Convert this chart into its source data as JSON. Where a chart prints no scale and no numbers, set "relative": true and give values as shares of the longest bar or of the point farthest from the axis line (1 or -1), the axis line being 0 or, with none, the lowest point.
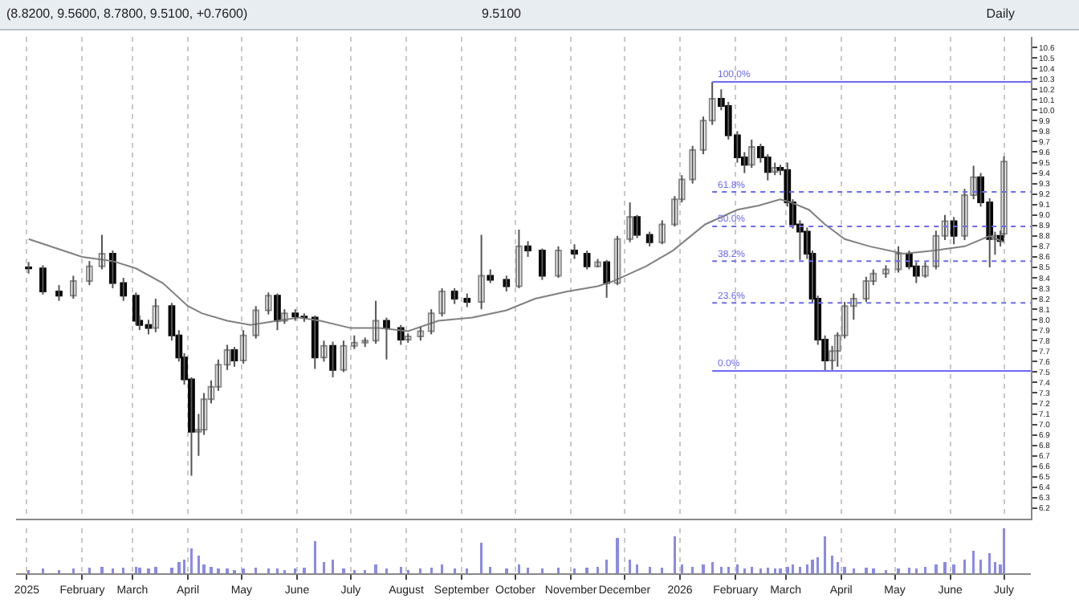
{
  "chart_data": [
    {
      "type": "candlestick",
      "annotations": [
        "(8.8200, 9.5600, 8.7800, 9.5100, +0.7600)",
        "9.5100",
        "Daily",
        {
          "text": "100.0%",
          "x": "2026-01-19",
          "y": 10.27
        },
        {
          "text": "61.8%",
          "x": "2026-01-19",
          "y": 9.22
        },
        {
          "text": "50.0%",
          "x": "2026-01-19",
          "y": 8.89
        },
        {
          "text": "38.2%",
          "x": "2026-01-19",
          "y": 8.56
        },
        {
          "text": "23.6%",
          "x": "2026-01-19",
          "y": 8.16
        },
        {
          "text": "0.0%",
          "x": "2026-01-19",
          "y": 7.51
        }
      ],
      "x": [
        "2025-01-02",
        "2025-01-10",
        "2025-01-19",
        "2025-01-27",
        "2025-02-05",
        "2025-02-12",
        "2025-02-18",
        "2025-02-24",
        "2025-03-03",
        "2025-03-05",
        "2025-03-10",
        "2025-03-14",
        "2025-03-23",
        "2025-03-27",
        "2025-03-30",
        "2025-04-03",
        "2025-04-07",
        "2025-04-10",
        "2025-04-14",
        "2025-04-18",
        "2025-04-23",
        "2025-04-27",
        "2025-05-02",
        "2025-05-09",
        "2025-05-16",
        "2025-05-21",
        "2025-05-25",
        "2025-05-31",
        "2025-06-05",
        "2025-06-11",
        "2025-06-16",
        "2025-06-21",
        "2025-06-27",
        "2025-07-03",
        "2025-07-09",
        "2025-07-15",
        "2025-07-21",
        "2025-07-29",
        "2025-08-02",
        "2025-08-09",
        "2025-08-15",
        "2025-08-21",
        "2025-08-28",
        "2025-09-04",
        "2025-09-12",
        "2025-09-17",
        "2025-09-26",
        "2025-10-03",
        "2025-10-08",
        "2025-10-16",
        "2025-10-25",
        "2025-11-03",
        "2025-11-10",
        "2025-11-16",
        "2025-11-21",
        "2025-11-27",
        "2025-12-04",
        "2025-12-08",
        "2025-12-15",
        "2025-12-22",
        "2025-12-29",
        "2026-01-02",
        "2026-01-08",
        "2026-01-14",
        "2026-01-19",
        "2026-01-24",
        "2026-01-28",
        "2026-02-02",
        "2026-02-06",
        "2026-02-10",
        "2026-02-15",
        "2026-02-19",
        "2026-02-23",
        "2026-02-26",
        "2026-03-02",
        "2026-03-05",
        "2026-03-09",
        "2026-03-13",
        "2026-03-16",
        "2026-03-19",
        "2026-03-23",
        "2026-03-27",
        "2026-03-30",
        "2026-04-03",
        "2026-04-08",
        "2026-04-15",
        "2026-04-19",
        "2026-04-26",
        "2026-05-03",
        "2026-05-09",
        "2026-05-13",
        "2026-05-18",
        "2026-05-24",
        "2026-05-29",
        "2026-06-03",
        "2026-06-09",
        "2026-06-14",
        "2026-06-18",
        "2026-06-23",
        "2026-06-26",
        "2026-06-29",
        "2026-07-01"
      ],
      "ohlc": [
        [
          8.5,
          8.55,
          8.44,
          8.49
        ],
        [
          8.49,
          8.52,
          8.24,
          8.27
        ],
        [
          8.27,
          8.33,
          8.18,
          8.23
        ],
        [
          8.23,
          8.42,
          8.2,
          8.37
        ],
        [
          8.37,
          8.56,
          8.33,
          8.51
        ],
        [
          8.51,
          8.81,
          8.48,
          8.63
        ],
        [
          8.63,
          8.66,
          8.3,
          8.35
        ],
        [
          8.35,
          8.4,
          8.18,
          8.23
        ],
        [
          8.23,
          8.26,
          7.95,
          7.99
        ],
        [
          7.99,
          8.04,
          7.9,
          7.95
        ],
        [
          7.95,
          8.0,
          7.86,
          7.92
        ],
        [
          7.92,
          8.2,
          7.88,
          8.13
        ],
        [
          8.13,
          8.16,
          7.8,
          7.85
        ],
        [
          7.85,
          7.9,
          7.6,
          7.64
        ],
        [
          7.64,
          7.68,
          7.38,
          7.43
        ],
        [
          7.43,
          7.45,
          6.51,
          6.93
        ],
        [
          6.93,
          7.1,
          6.7,
          6.95
        ],
        [
          6.95,
          7.3,
          6.9,
          7.24
        ],
        [
          7.24,
          7.42,
          7.2,
          7.36
        ],
        [
          7.36,
          7.62,
          7.32,
          7.57
        ],
        [
          7.57,
          7.76,
          7.52,
          7.71
        ],
        [
          7.71,
          7.74,
          7.55,
          7.61
        ],
        [
          7.61,
          7.9,
          7.58,
          7.85
        ],
        [
          7.85,
          8.13,
          7.82,
          8.09
        ],
        [
          8.09,
          8.26,
          8.05,
          8.23
        ],
        [
          8.23,
          8.25,
          7.9,
          7.99
        ],
        [
          7.99,
          8.1,
          7.96,
          8.06
        ],
        [
          8.06,
          8.1,
          7.99,
          8.03
        ],
        [
          8.03,
          8.06,
          7.98,
          8.02
        ],
        [
          8.02,
          8.04,
          7.53,
          7.64
        ],
        [
          7.64,
          7.8,
          7.6,
          7.75
        ],
        [
          7.75,
          7.79,
          7.45,
          7.52
        ],
        [
          7.52,
          7.8,
          7.5,
          7.75
        ],
        [
          7.75,
          7.85,
          7.72,
          7.78
        ],
        [
          7.78,
          7.83,
          7.74,
          7.8
        ],
        [
          7.8,
          8.18,
          7.77,
          7.99
        ],
        [
          7.99,
          8.02,
          7.62,
          7.92
        ],
        [
          7.92,
          7.95,
          7.76,
          7.81
        ],
        [
          7.81,
          7.87,
          7.78,
          7.84
        ],
        [
          7.84,
          7.93,
          7.8,
          7.89
        ],
        [
          7.89,
          8.1,
          7.86,
          8.06
        ],
        [
          8.06,
          8.3,
          8.03,
          8.27
        ],
        [
          8.27,
          8.3,
          8.15,
          8.2
        ],
        [
          8.2,
          8.25,
          8.12,
          8.17
        ],
        [
          8.17,
          8.81,
          8.1,
          8.42
        ],
        [
          8.42,
          8.48,
          8.35,
          8.38
        ],
        [
          8.38,
          8.42,
          8.27,
          8.32
        ],
        [
          8.32,
          8.86,
          8.3,
          8.7
        ],
        [
          8.7,
          8.75,
          8.6,
          8.66
        ],
        [
          8.66,
          8.68,
          8.38,
          8.42
        ],
        [
          8.42,
          8.7,
          8.4,
          8.66
        ],
        [
          8.66,
          8.72,
          8.58,
          8.63
        ],
        [
          8.63,
          8.66,
          8.48,
          8.51
        ],
        [
          8.51,
          8.58,
          8.5,
          8.55
        ],
        [
          8.55,
          8.57,
          8.21,
          8.35
        ],
        [
          8.35,
          8.8,
          8.33,
          8.77
        ],
        [
          8.77,
          9.12,
          8.74,
          8.98
        ],
        [
          8.98,
          9.0,
          8.78,
          8.81
        ],
        [
          8.81,
          8.84,
          8.7,
          8.74
        ],
        [
          8.74,
          8.95,
          8.72,
          8.91
        ],
        [
          8.91,
          9.18,
          8.89,
          9.15
        ],
        [
          9.15,
          9.38,
          9.12,
          9.34
        ],
        [
          9.34,
          9.66,
          9.3,
          9.62
        ],
        [
          9.62,
          9.94,
          9.58,
          9.9
        ],
        [
          9.9,
          10.27,
          9.86,
          10.11
        ],
        [
          10.11,
          10.2,
          10.0,
          10.04
        ],
        [
          10.04,
          10.08,
          9.72,
          9.76
        ],
        [
          9.76,
          9.8,
          9.5,
          9.55
        ],
        [
          9.55,
          9.6,
          9.4,
          9.48
        ],
        [
          9.48,
          9.72,
          9.45,
          9.65
        ],
        [
          9.65,
          9.68,
          9.5,
          9.55
        ],
        [
          9.55,
          9.58,
          9.33,
          9.41
        ],
        [
          9.41,
          9.5,
          9.38,
          9.45
        ],
        [
          9.45,
          9.48,
          9.38,
          9.43
        ],
        [
          9.43,
          9.5,
          9.08,
          9.12
        ],
        [
          9.12,
          9.15,
          8.87,
          8.91
        ],
        [
          8.91,
          8.95,
          8.57,
          8.84
        ],
        [
          8.84,
          8.88,
          8.58,
          8.63
        ],
        [
          8.63,
          8.66,
          8.16,
          8.2
        ],
        [
          8.2,
          8.23,
          7.76,
          7.81
        ],
        [
          7.81,
          7.85,
          7.51,
          7.61
        ],
        [
          7.61,
          7.75,
          7.52,
          7.7
        ],
        [
          7.7,
          7.88,
          7.55,
          7.85
        ],
        [
          7.85,
          8.17,
          7.82,
          8.13
        ],
        [
          8.13,
          8.25,
          8.0,
          8.2
        ],
        [
          8.2,
          8.41,
          8.17,
          8.37
        ],
        [
          8.37,
          8.48,
          8.33,
          8.44
        ],
        [
          8.44,
          8.52,
          8.4,
          8.48
        ],
        [
          8.48,
          8.7,
          8.45,
          8.63
        ],
        [
          8.63,
          8.66,
          8.48,
          8.51
        ],
        [
          8.51,
          8.55,
          8.35,
          8.42
        ],
        [
          8.42,
          8.55,
          8.4,
          8.51
        ],
        [
          8.51,
          8.85,
          8.48,
          8.8
        ],
        [
          8.8,
          9.0,
          8.76,
          8.94
        ],
        [
          8.94,
          8.98,
          8.72,
          8.8
        ],
        [
          8.8,
          9.25,
          8.76,
          9.19
        ],
        [
          9.19,
          9.47,
          9.15,
          9.36
        ],
        [
          9.36,
          9.4,
          9.08,
          9.12
        ],
        [
          9.12,
          9.16,
          8.5,
          8.77
        ],
        [
          8.77,
          8.84,
          8.62,
          8.8
        ],
        [
          8.8,
          8.85,
          8.7,
          8.75
        ],
        [
          8.82,
          9.56,
          8.78,
          9.51
        ]
      ],
      "series": [
        {
          "type": "line",
          "color": "#808080",
          "x": [
            "2025-01-02",
            "2025-02-01",
            "2025-02-18",
            "2025-03-03",
            "2025-03-18",
            "2025-04-01",
            "2025-04-09",
            "2025-04-23",
            "2025-05-06",
            "2025-05-21",
            "2025-06-02",
            "2025-06-14",
            "2025-07-01",
            "2025-07-17",
            "2025-08-02",
            "2025-08-19",
            "2025-09-07",
            "2025-09-26",
            "2025-10-12",
            "2025-10-30",
            "2025-11-16",
            "2025-11-25",
            "2025-12-13",
            "2025-12-28",
            "2026-01-15",
            "2026-02-02",
            "2026-02-14",
            "2026-02-26",
            "2026-03-04",
            "2026-03-14",
            "2026-03-23",
            "2026-04-03",
            "2026-04-17",
            "2026-05-06",
            "2026-05-23",
            "2026-06-09",
            "2026-06-23",
            "2026-07-01"
          ],
          "values": [
            8.77,
            8.6,
            8.56,
            8.49,
            8.35,
            8.13,
            8.06,
            7.99,
            7.95,
            7.99,
            8.02,
            7.99,
            7.92,
            7.92,
            7.89,
            7.99,
            8.02,
            8.09,
            8.2,
            8.27,
            8.32,
            8.37,
            8.51,
            8.66,
            8.91,
            9.05,
            9.09,
            9.15,
            9.12,
            9.05,
            8.91,
            8.77,
            8.7,
            8.63,
            8.66,
            8.7,
            8.8,
            8.74
          ]
        }
      ],
      "xlim": [
        "2024-12-26",
        "2026-07-16"
      ],
      "xticks": [
        {
          "value": "2025-01-01",
          "label": null
        },
        {
          "value": "2025-02-01",
          "label": null
        },
        {
          "value": "2025-03-01",
          "label": null
        },
        {
          "value": "2025-04-01",
          "label": null
        },
        {
          "value": "2025-05-01",
          "label": null
        },
        {
          "value": "2025-06-01",
          "label": null
        },
        {
          "value": "2025-07-01",
          "label": null
        },
        {
          "value": "2025-08-01",
          "label": null
        },
        {
          "value": "2025-09-01",
          "label": null
        },
        {
          "value": "2025-10-01",
          "label": null
        },
        {
          "value": "2025-11-01",
          "label": null
        },
        {
          "value": "2025-12-01",
          "label": null
        },
        {
          "value": "2026-01-01",
          "label": null
        },
        {
          "value": "2026-02-01",
          "label": null
        },
        {
          "value": "2026-03-01",
          "label": null
        },
        {
          "value": "2026-04-01",
          "label": null
        },
        {
          "value": "2026-05-01",
          "label": null
        },
        {
          "value": "2026-06-01",
          "label": null
        },
        {
          "value": "2026-07-01",
          "label": null
        }
      ],
      "ylim": [
        6.1,
        10.7
      ],
      "yticks": [
        6.2,
        6.3,
        6.4,
        6.5,
        6.6,
        6.7,
        6.8,
        6.9,
        {
          "value": 7,
          "label": "7.0"
        },
        7.1,
        7.2,
        7.3,
        7.4,
        7.5,
        7.6,
        7.7,
        7.8,
        7.9,
        {
          "value": 8,
          "label": "8.0"
        },
        8.1,
        8.2,
        8.3,
        8.4,
        8.5,
        8.6,
        8.7,
        8.8,
        8.9,
        {
          "value": 9,
          "label": "9.0"
        },
        9.1,
        9.2,
        9.3,
        9.4,
        9.5,
        9.6,
        9.7,
        9.8,
        9.9,
        {
          "value": 10,
          "label": "10.0"
        },
        10.1,
        10.2,
        10.3,
        10.4,
        10.5,
        10.6
      ],
      "grid": "x",
      "tick_labels": "y",
      "ref_lines": [
        {
          "axis": "y",
          "value": 10.27,
          "color": "#6b6bf0",
          "line_style": "solid"
        },
        {
          "axis": "y",
          "value": 9.22,
          "color": "#6b6bf0",
          "line_style": "dotted"
        },
        {
          "axis": "y",
          "value": 8.89,
          "color": "#6b6bf0",
          "line_style": "dotted"
        },
        {
          "axis": "y",
          "value": 8.56,
          "color": "#6b6bf0",
          "line_style": "dotted"
        },
        {
          "axis": "y",
          "value": 8.16,
          "color": "#6b6bf0",
          "line_style": "dotted"
        },
        {
          "axis": "y",
          "value": 7.51,
          "color": "#6b6bf0",
          "line_style": "solid"
        }
      ]
    },
    {
      "type": "bar",
      "relative": true,
      "color": "#8a8ae6",
      "x": [
        "2025-01-02",
        "2025-01-10",
        "2025-01-19",
        "2025-01-27",
        "2025-02-05",
        "2025-02-12",
        "2025-02-18",
        "2025-02-24",
        "2025-03-03",
        "2025-03-05",
        "2025-03-10",
        "2025-03-14",
        "2025-03-23",
        "2025-03-27",
        "2025-03-30",
        "2025-04-03",
        "2025-04-07",
        "2025-04-10",
        "2025-04-14",
        "2025-04-18",
        "2025-04-23",
        "2025-04-27",
        "2025-05-02",
        "2025-05-09",
        "2025-05-16",
        "2025-05-21",
        "2025-05-25",
        "2025-05-31",
        "2025-06-05",
        "2025-06-11",
        "2025-06-16",
        "2025-06-21",
        "2025-06-27",
        "2025-07-03",
        "2025-07-09",
        "2025-07-15",
        "2025-07-21",
        "2025-07-29",
        "2025-08-02",
        "2025-08-09",
        "2025-08-15",
        "2025-08-21",
        "2025-08-28",
        "2025-09-04",
        "2025-09-12",
        "2025-09-17",
        "2025-09-26",
        "2025-10-03",
        "2025-10-08",
        "2025-10-16",
        "2025-10-25",
        "2025-11-03",
        "2025-11-10",
        "2025-11-16",
        "2025-11-21",
        "2025-11-27",
        "2025-12-04",
        "2025-12-08",
        "2025-12-15",
        "2025-12-22",
        "2025-12-29",
        "2026-01-02",
        "2026-01-08",
        "2026-01-14",
        "2026-01-19",
        "2026-01-24",
        "2026-01-28",
        "2026-02-02",
        "2026-02-06",
        "2026-02-10",
        "2026-02-15",
        "2026-02-19",
        "2026-02-23",
        "2026-02-26",
        "2026-03-02",
        "2026-03-05",
        "2026-03-09",
        "2026-03-13",
        "2026-03-16",
        "2026-03-19",
        "2026-03-23",
        "2026-03-27",
        "2026-03-30",
        "2026-04-03",
        "2026-04-08",
        "2026-04-15",
        "2026-04-19",
        "2026-04-26",
        "2026-05-03",
        "2026-05-09",
        "2026-05-13",
        "2026-05-18",
        "2026-05-24",
        "2026-05-29",
        "2026-06-03",
        "2026-06-09",
        "2026-06-14",
        "2026-06-18",
        "2026-06-23",
        "2026-06-26",
        "2026-06-29",
        "2026-07-01"
      ],
      "values": [
        0.08,
        0.1,
        0.08,
        0.1,
        0.12,
        0.15,
        0.1,
        0.12,
        0.15,
        0.12,
        0.1,
        0.15,
        0.12,
        0.25,
        0.3,
        0.55,
        0.4,
        0.2,
        0.15,
        0.1,
        0.1,
        0.08,
        0.1,
        0.12,
        0.1,
        0.1,
        0.08,
        0.1,
        0.12,
        0.72,
        0.25,
        0.3,
        0.1,
        0.08,
        0.08,
        0.2,
        0.1,
        0.15,
        0.08,
        0.1,
        0.12,
        0.2,
        0.1,
        0.1,
        0.68,
        0.15,
        0.1,
        0.2,
        0.12,
        0.1,
        0.12,
        0.1,
        0.12,
        0.15,
        0.3,
        0.78,
        0.3,
        0.2,
        0.15,
        0.12,
        0.83,
        0.2,
        0.15,
        0.2,
        0.25,
        0.15,
        0.15,
        0.2,
        0.1,
        0.15,
        0.1,
        0.12,
        0.1,
        0.1,
        0.15,
        0.2,
        0.15,
        0.2,
        0.3,
        0.35,
        0.83,
        0.4,
        0.25,
        0.15,
        0.1,
        0.12,
        0.1,
        0.08,
        0.1,
        0.12,
        0.1,
        0.15,
        0.2,
        0.25,
        0.2,
        0.3,
        0.5,
        0.3,
        0.45,
        0.25,
        0.2,
        1
      ],
      "xlim": [
        "2024-12-26",
        "2026-07-16"
      ],
      "xticks": [
        {
          "value": "2025-01-01",
          "label": "2025"
        },
        {
          "value": "2025-02-01",
          "label": "February"
        },
        {
          "value": "2025-03-01",
          "label": "March"
        },
        {
          "value": "2025-04-01",
          "label": "April"
        },
        {
          "value": "2025-05-01",
          "label": "May"
        },
        {
          "value": "2025-06-01",
          "label": "June"
        },
        {
          "value": "2025-07-01",
          "label": "July"
        },
        {
          "value": "2025-08-01",
          "label": "August"
        },
        {
          "value": "2025-09-01",
          "label": "September"
        },
        {
          "value": "2025-10-01",
          "label": "October"
        },
        {
          "value": "2025-11-01",
          "label": "November"
        },
        {
          "value": "2025-12-01",
          "label": "December"
        },
        {
          "value": "2026-01-01",
          "label": "2026"
        },
        {
          "value": "2026-02-01",
          "label": "February"
        },
        {
          "value": "2026-03-01",
          "label": "March"
        },
        {
          "value": "2026-04-01",
          "label": "April"
        },
        {
          "value": "2026-05-01",
          "label": "May"
        },
        {
          "value": "2026-06-01",
          "label": "June"
        },
        {
          "value": "2026-07-01",
          "label": "July"
        }
      ],
      "grid": "x",
      "tick_labels": "x"
    }
  ]
}
